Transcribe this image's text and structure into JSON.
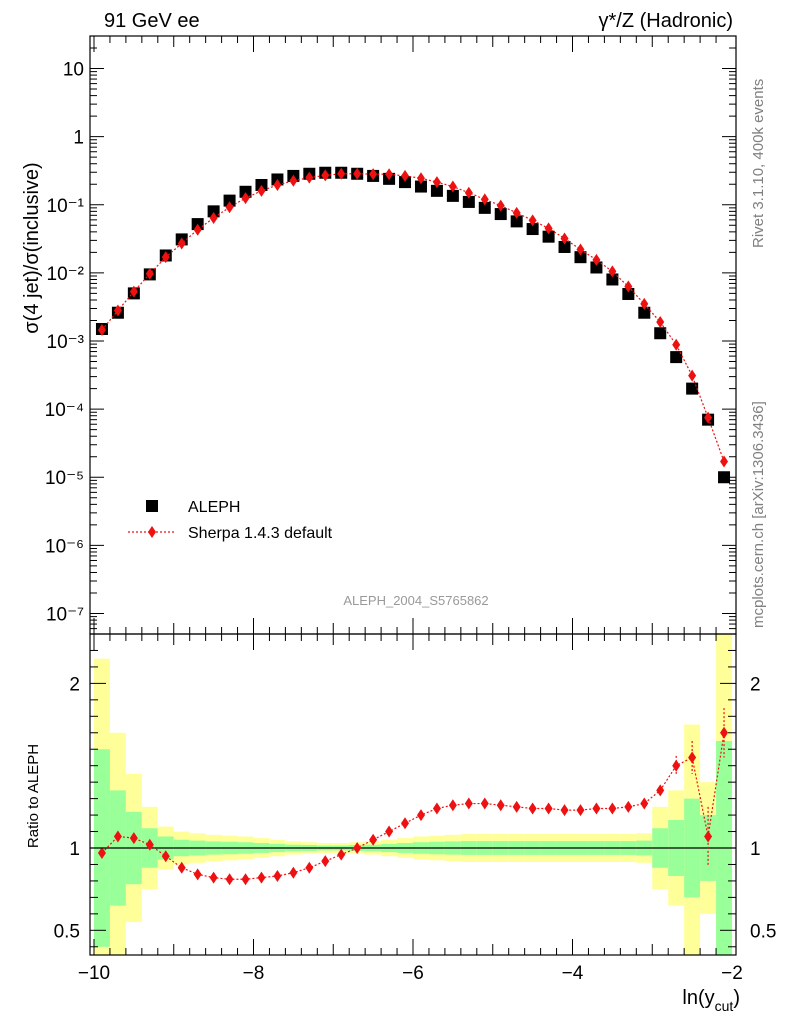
{
  "header": {
    "left": "91 GeV ee",
    "right": "γ*/Z (Hadronic)"
  },
  "side_labels": {
    "rivet": "Rivet 3.1.10,  400k events",
    "mcplots": "mcplots.cern.ch [arXiv:1306.3436]"
  },
  "analysis_label": "ALEPH_2004_S5765862",
  "chart_data": [
    {
      "type": "scatter",
      "ylabel": "σ(4 jet)/σ(inclusive)",
      "yscale": "log",
      "ylim": [
        5e-08,
        30
      ],
      "xlim": [
        -10.05,
        -1.95
      ],
      "ytick_labels": [
        "10⁻⁷",
        "10⁻⁶",
        "10⁻⁵",
        "10⁻⁴",
        "10⁻³",
        "10⁻²",
        "10⁻¹",
        "1",
        "10"
      ],
      "ytick_values": [
        1e-07,
        1e-06,
        1e-05,
        0.0001,
        0.001,
        0.01,
        0.1,
        1,
        10
      ],
      "legend_position": "lower-left",
      "series": [
        {
          "name": "ALEPH",
          "color": "#000000",
          "marker": "square",
          "x": [
            -9.9,
            -9.7,
            -9.5,
            -9.3,
            -9.1,
            -8.9,
            -8.7,
            -8.5,
            -8.3,
            -8.1,
            -7.9,
            -7.7,
            -7.5,
            -7.3,
            -7.1,
            -6.9,
            -6.7,
            -6.5,
            -6.3,
            -6.1,
            -5.9,
            -5.7,
            -5.5,
            -5.3,
            -5.1,
            -4.9,
            -4.7,
            -4.5,
            -4.3,
            -4.1,
            -3.9,
            -3.7,
            -3.5,
            -3.3,
            -3.1,
            -2.9,
            -2.7,
            -2.5,
            -2.3,
            -2.1
          ],
          "y": [
            0.0015,
            0.0026,
            0.005,
            0.0095,
            0.018,
            0.031,
            0.052,
            0.08,
            0.115,
            0.155,
            0.195,
            0.235,
            0.265,
            0.285,
            0.295,
            0.295,
            0.285,
            0.265,
            0.24,
            0.215,
            0.185,
            0.16,
            0.135,
            0.11,
            0.09,
            0.073,
            0.057,
            0.044,
            0.034,
            0.024,
            0.017,
            0.012,
            0.008,
            0.0049,
            0.0026,
            0.0013,
            0.00058,
            0.0002,
            7e-05,
            1e-05
          ]
        },
        {
          "name": "Sherpa 1.4.3 default",
          "color": "#ee1111",
          "marker": "diamond",
          "line": "dotted",
          "x": [
            -9.9,
            -9.7,
            -9.5,
            -9.3,
            -9.1,
            -8.9,
            -8.7,
            -8.5,
            -8.3,
            -8.1,
            -7.9,
            -7.7,
            -7.5,
            -7.3,
            -7.1,
            -6.9,
            -6.7,
            -6.5,
            -6.3,
            -6.1,
            -5.9,
            -5.7,
            -5.5,
            -5.3,
            -5.1,
            -4.9,
            -4.7,
            -4.5,
            -4.3,
            -4.1,
            -3.9,
            -3.7,
            -3.5,
            -3.3,
            -3.1,
            -2.9,
            -2.7,
            -2.5,
            -2.3,
            -2.1
          ],
          "y": [
            0.00145,
            0.0028,
            0.0053,
            0.0097,
            0.017,
            0.027,
            0.043,
            0.064,
            0.092,
            0.125,
            0.16,
            0.195,
            0.225,
            0.25,
            0.27,
            0.285,
            0.285,
            0.282,
            0.28,
            0.265,
            0.245,
            0.215,
            0.185,
            0.15,
            0.12,
            0.097,
            0.076,
            0.059,
            0.045,
            0.032,
            0.022,
            0.0155,
            0.0105,
            0.0063,
            0.0035,
            0.0019,
            0.00088,
            0.00031,
            7.5e-05,
            1.7e-05
          ]
        }
      ]
    },
    {
      "type": "line",
      "xlabel": "ln(y",
      "xlabel_sub": "cut",
      "xlabel_close": ")",
      "ylabel": "Ratio to ALEPH",
      "xlim": [
        -10.05,
        -1.95
      ],
      "ylim": [
        0.35,
        2.3
      ],
      "xticks": [
        -10,
        -8,
        -6,
        -4,
        -2
      ],
      "xtick_labels": [
        "−10",
        "−8",
        "−6",
        "−4",
        "−2"
      ],
      "yticks": [
        0.5,
        1,
        2
      ],
      "ytick_labels": [
        "0.5",
        "1",
        "2"
      ],
      "reference_line": 1,
      "bin_edges": [
        -10,
        -9.8,
        -9.6,
        -9.4,
        -9.2,
        -9.0,
        -8.8,
        -8.6,
        -8.4,
        -8.2,
        -8.0,
        -7.8,
        -7.6,
        -7.4,
        -7.2,
        -7.0,
        -6.8,
        -6.6,
        -6.4,
        -6.2,
        -6.0,
        -5.8,
        -5.6,
        -5.4,
        -5.2,
        -5.0,
        -4.8,
        -4.6,
        -4.4,
        -4.2,
        -4.0,
        -3.8,
        -3.6,
        -3.4,
        -3.2,
        -3.0,
        -2.8,
        -2.6,
        -2.4,
        -2.2,
        -2.0
      ],
      "band_outer_half_width": [
        1.15,
        0.7,
        0.45,
        0.25,
        0.13,
        0.1,
        0.09,
        0.08,
        0.075,
        0.07,
        0.06,
        0.05,
        0.04,
        0.035,
        0.03,
        0.03,
        0.035,
        0.04,
        0.05,
        0.06,
        0.07,
        0.075,
        0.08,
        0.085,
        0.085,
        0.085,
        0.085,
        0.085,
        0.085,
        0.085,
        0.085,
        0.085,
        0.085,
        0.085,
        0.09,
        0.25,
        0.35,
        0.75,
        0.4,
        1.35
      ],
      "band_inner_half_width": [
        0.6,
        0.35,
        0.22,
        0.12,
        0.07,
        0.05,
        0.045,
        0.04,
        0.038,
        0.035,
        0.03,
        0.025,
        0.02,
        0.018,
        0.015,
        0.015,
        0.018,
        0.02,
        0.025,
        0.03,
        0.035,
        0.038,
        0.04,
        0.042,
        0.042,
        0.042,
        0.042,
        0.042,
        0.042,
        0.042,
        0.042,
        0.042,
        0.042,
        0.042,
        0.045,
        0.12,
        0.17,
        0.3,
        0.2,
        0.65
      ],
      "band_inner_color": "#99ff99",
      "band_outer_color": "#ffff99",
      "series": [
        {
          "name": "Sherpa 1.4.3 default",
          "color": "#ee1111",
          "marker": "diamond",
          "line": "dotted",
          "x": [
            -9.9,
            -9.7,
            -9.5,
            -9.3,
            -9.1,
            -8.9,
            -8.7,
            -8.5,
            -8.3,
            -8.1,
            -7.9,
            -7.7,
            -7.5,
            -7.3,
            -7.1,
            -6.9,
            -6.7,
            -6.5,
            -6.3,
            -6.1,
            -5.9,
            -5.7,
            -5.5,
            -5.3,
            -5.1,
            -4.9,
            -4.7,
            -4.5,
            -4.3,
            -4.1,
            -3.9,
            -3.7,
            -3.5,
            -3.3,
            -3.1,
            -2.9,
            -2.7,
            -2.5,
            -2.3,
            -2.1
          ],
          "y": [
            0.97,
            1.07,
            1.06,
            1.02,
            0.95,
            0.88,
            0.84,
            0.82,
            0.81,
            0.81,
            0.82,
            0.83,
            0.85,
            0.88,
            0.92,
            0.96,
            1.0,
            1.05,
            1.1,
            1.15,
            1.2,
            1.24,
            1.26,
            1.27,
            1.27,
            1.26,
            1.25,
            1.24,
            1.24,
            1.23,
            1.23,
            1.24,
            1.24,
            1.25,
            1.27,
            1.35,
            1.5,
            1.55,
            1.07,
            1.7
          ],
          "err": [
            0.02,
            0.02,
            0.02,
            0.01,
            0.01,
            0.01,
            0.01,
            0.01,
            0.01,
            0.01,
            0.01,
            0.01,
            0.01,
            0.01,
            0.01,
            0.01,
            0.01,
            0.01,
            0.01,
            0.01,
            0.01,
            0.01,
            0.01,
            0.01,
            0.01,
            0.01,
            0.01,
            0.01,
            0.01,
            0.01,
            0.01,
            0.01,
            0.01,
            0.01,
            0.02,
            0.03,
            0.06,
            0.1,
            0.18,
            0.15
          ]
        }
      ]
    }
  ]
}
